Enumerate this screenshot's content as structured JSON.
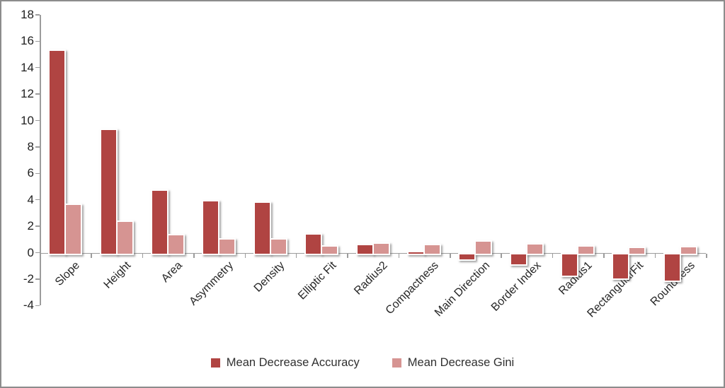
{
  "chart_data": {
    "type": "bar",
    "title": "",
    "xlabel": "",
    "ylabel": "",
    "categories": [
      "Slope",
      "Height",
      "Area",
      "Asymmetry",
      "Density",
      "Elliptic Fit",
      "Radius2",
      "Compactness",
      "Main Direction",
      "Border Index",
      "Radius1",
      "RectangularFit",
      "Roundness"
    ],
    "series": [
      {
        "name": "Mean Decrease Accuracy",
        "color": "#B04442",
        "values": [
          15.4,
          9.4,
          4.8,
          4.0,
          3.9,
          1.45,
          0.65,
          0.15,
          -0.4,
          -0.8,
          -1.65,
          -1.85,
          -2.0
        ]
      },
      {
        "name": "Mean Decrease Gini",
        "color": "#D69492",
        "values": [
          3.7,
          2.45,
          1.4,
          1.1,
          1.1,
          0.55,
          0.75,
          0.65,
          0.95,
          0.7,
          0.55,
          0.45,
          0.5
        ]
      }
    ],
    "ylim": [
      -4,
      18
    ],
    "yticks": [
      18,
      16,
      14,
      12,
      10,
      8,
      6,
      4,
      2,
      0,
      -2,
      -4
    ],
    "grid": false,
    "legend_position": "bottom",
    "axis_color": "#9c9c9c",
    "text_color": "#262626"
  }
}
